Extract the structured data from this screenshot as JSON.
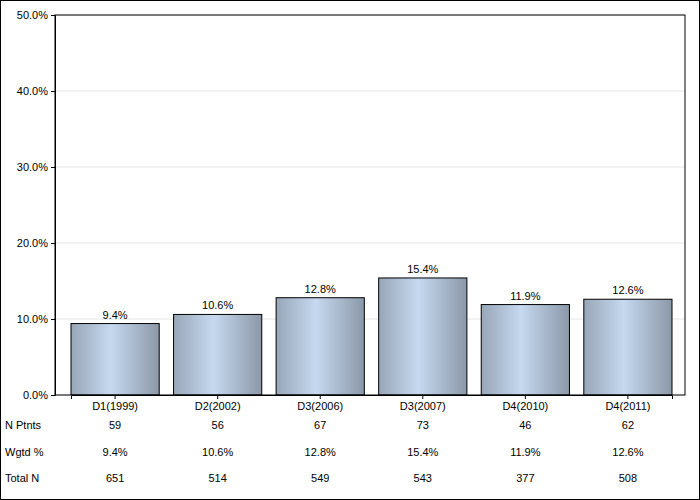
{
  "chart_data": {
    "type": "bar",
    "categories": [
      "D1(1999)",
      "D2(2002)",
      "D3(2006)",
      "D3(2007)",
      "D4(2010)",
      "D4(2011)"
    ],
    "values": [
      9.4,
      10.6,
      12.8,
      15.4,
      11.9,
      12.6
    ],
    "value_labels": [
      "9.4%",
      "10.6%",
      "12.8%",
      "15.4%",
      "11.9%",
      "12.6%"
    ],
    "data_labels": true,
    "color": "#a9b9cc",
    "ylim": [
      0,
      50
    ],
    "yticks": [
      {
        "value": 0,
        "label": "0.0%"
      },
      {
        "value": 10,
        "label": "10.0%"
      },
      {
        "value": 20,
        "label": "20.0%"
      },
      {
        "value": 30,
        "label": "30.0%"
      },
      {
        "value": 40,
        "label": "40.0%"
      },
      {
        "value": 50,
        "label": "50.0%"
      }
    ],
    "grid": true,
    "table": {
      "rows": [
        {
          "label": "N Ptnts",
          "values": [
            59,
            56,
            67,
            73,
            46,
            62
          ]
        },
        {
          "label": "Wgtd %",
          "values": [
            9.4,
            10.6,
            12.8,
            15.4,
            11.9,
            12.6
          ],
          "value_labels": [
            "9.4%",
            "10.6%",
            "12.8%",
            "15.4%",
            "11.9%",
            "12.6%"
          ]
        },
        {
          "label": "Total N",
          "values": [
            651,
            514,
            549,
            543,
            377,
            508
          ]
        }
      ]
    }
  }
}
